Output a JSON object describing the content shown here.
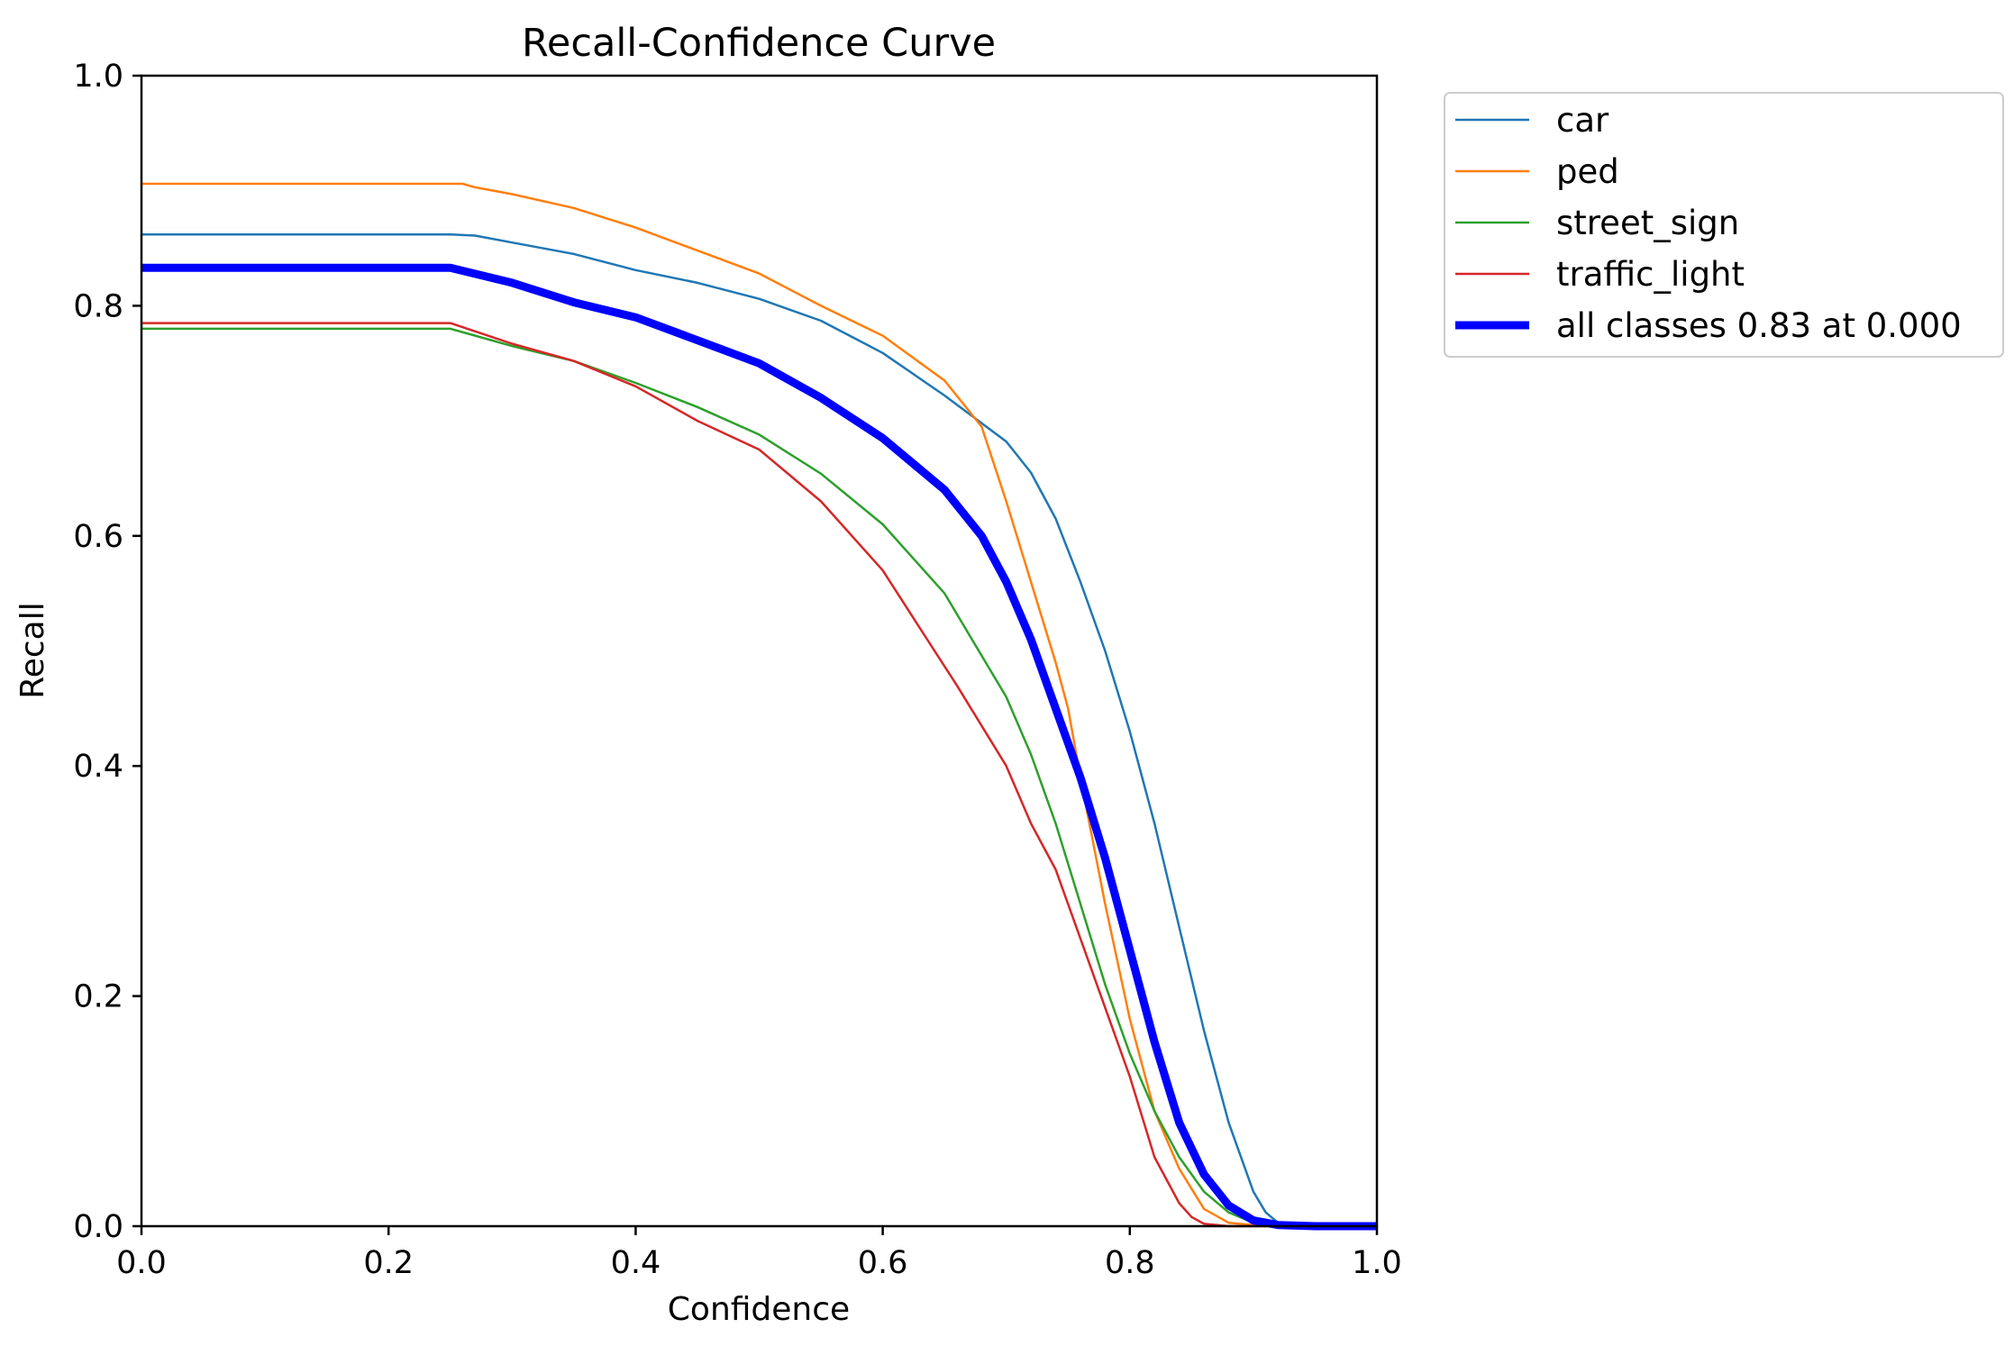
{
  "chart_data": {
    "type": "line",
    "title": "Recall-Confidence Curve",
    "xlabel": "Confidence",
    "ylabel": "Recall",
    "xlim": [
      0.0,
      1.0
    ],
    "ylim": [
      0.0,
      1.0
    ],
    "xticks": [
      "0.0",
      "0.2",
      "0.4",
      "0.6",
      "0.8",
      "1.0"
    ],
    "yticks": [
      "0.0",
      "0.2",
      "0.4",
      "0.6",
      "0.8",
      "1.0"
    ],
    "grid": false,
    "legend_position": "outside-top-right",
    "series": [
      {
        "name": "car",
        "color": "#1f77b4",
        "thick": false,
        "x": [
          0,
          0.25,
          0.27,
          0.3,
          0.35,
          0.4,
          0.45,
          0.5,
          0.55,
          0.6,
          0.65,
          0.7,
          0.72,
          0.74,
          0.76,
          0.78,
          0.8,
          0.82,
          0.84,
          0.86,
          0.88,
          0.9,
          0.91,
          0.92,
          0.93,
          0.95,
          1.0
        ],
        "values": [
          0.862,
          0.862,
          0.861,
          0.855,
          0.845,
          0.831,
          0.82,
          0.806,
          0.787,
          0.759,
          0.722,
          0.682,
          0.655,
          0.615,
          0.56,
          0.5,
          0.43,
          0.35,
          0.26,
          0.17,
          0.09,
          0.03,
          0.012,
          0.003,
          0.001,
          0.0,
          0.0
        ]
      },
      {
        "name": "ped",
        "color": "#ff7f0e",
        "thick": false,
        "x": [
          0,
          0.26,
          0.27,
          0.3,
          0.35,
          0.4,
          0.45,
          0.5,
          0.55,
          0.6,
          0.65,
          0.68,
          0.7,
          0.72,
          0.74,
          0.75,
          0.76,
          0.78,
          0.8,
          0.82,
          0.84,
          0.86,
          0.88,
          0.9,
          0.95,
          1.0
        ],
        "values": [
          0.906,
          0.906,
          0.903,
          0.897,
          0.885,
          0.868,
          0.848,
          0.828,
          0.8,
          0.774,
          0.735,
          0.695,
          0.63,
          0.56,
          0.49,
          0.45,
          0.39,
          0.28,
          0.18,
          0.1,
          0.05,
          0.015,
          0.003,
          0.001,
          0.0,
          0.0
        ]
      },
      {
        "name": "street_sign",
        "color": "#2ca02c",
        "thick": false,
        "x": [
          0,
          0.25,
          0.3,
          0.35,
          0.4,
          0.45,
          0.5,
          0.55,
          0.6,
          0.65,
          0.7,
          0.72,
          0.74,
          0.76,
          0.78,
          0.8,
          0.82,
          0.84,
          0.86,
          0.88,
          0.9,
          0.92,
          0.95,
          1.0
        ],
        "values": [
          0.78,
          0.78,
          0.765,
          0.752,
          0.733,
          0.712,
          0.688,
          0.654,
          0.61,
          0.55,
          0.46,
          0.41,
          0.35,
          0.28,
          0.21,
          0.15,
          0.1,
          0.06,
          0.03,
          0.012,
          0.003,
          0.001,
          0.0,
          0.0
        ]
      },
      {
        "name": "traffic_light",
        "color": "#d62728",
        "thick": false,
        "x": [
          0,
          0.25,
          0.3,
          0.35,
          0.4,
          0.45,
          0.5,
          0.55,
          0.6,
          0.63,
          0.66,
          0.7,
          0.72,
          0.74,
          0.76,
          0.78,
          0.8,
          0.82,
          0.84,
          0.85,
          0.86,
          0.88,
          0.9,
          1.0
        ],
        "values": [
          0.785,
          0.785,
          0.767,
          0.752,
          0.73,
          0.7,
          0.675,
          0.63,
          0.57,
          0.52,
          0.47,
          0.4,
          0.35,
          0.31,
          0.25,
          0.19,
          0.13,
          0.06,
          0.02,
          0.008,
          0.002,
          0.0,
          0.0,
          0.0
        ]
      },
      {
        "name": "all classes 0.83 at 0.000",
        "color": "#0000ff",
        "thick": true,
        "x": [
          0,
          0.25,
          0.3,
          0.35,
          0.4,
          0.45,
          0.5,
          0.55,
          0.6,
          0.65,
          0.68,
          0.7,
          0.72,
          0.74,
          0.76,
          0.78,
          0.8,
          0.82,
          0.84,
          0.86,
          0.88,
          0.9,
          0.92,
          0.95,
          1.0
        ],
        "values": [
          0.833,
          0.833,
          0.82,
          0.803,
          0.79,
          0.77,
          0.75,
          0.72,
          0.685,
          0.64,
          0.6,
          0.56,
          0.51,
          0.45,
          0.39,
          0.32,
          0.24,
          0.16,
          0.09,
          0.045,
          0.018,
          0.005,
          0.001,
          0.0,
          0.0
        ]
      }
    ]
  }
}
